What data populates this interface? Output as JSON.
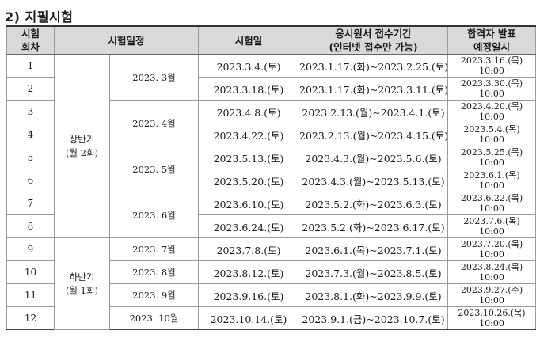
{
  "section_title": "2) 지필시험",
  "headers": {
    "round_line1": "시험",
    "round_line2": "회차",
    "schedule": "시험일정",
    "exam_date": "시험일",
    "application_line1": "응시원서 접수기간",
    "application_line2": "(인터넷 접수만 가능)",
    "announce_line1": "합격자 발표",
    "announce_line2": "예정일시"
  },
  "half_labels": {
    "first_line1": "상반기",
    "first_line2": "(월 2회)",
    "second_line1": "하반기",
    "second_line2": "(월 1회)"
  },
  "months": {
    "mar": "2023. 3월",
    "apr": "2023. 4월",
    "may": "2023. 5월",
    "jun": "2023. 6월",
    "jul": "2023. 7월",
    "aug": "2023. 8월",
    "sep": "2023. 9월",
    "oct": "2023. 10월"
  },
  "rows": [
    {
      "round": "1",
      "exam_date": "2023.3.4.(토)",
      "application": "2023.1.17.(화)~2023.2.25.(토)",
      "announce_date": "2023.3.16.(목)",
      "announce_time": "10:00"
    },
    {
      "round": "2",
      "exam_date": "2023.3.18.(토)",
      "application": "2023.1.17.(화)~2023.3.11.(토)",
      "announce_date": "2023.3.30.(목)",
      "announce_time": "10:00"
    },
    {
      "round": "3",
      "exam_date": "2023.4.8.(토)",
      "application": "2023.2.13.(월)~2023.4.1.(토)",
      "announce_date": "2023.4.20.(목)",
      "announce_time": "10:00"
    },
    {
      "round": "4",
      "exam_date": "2023.4.22.(토)",
      "application": "2023.2.13.(월)~2023.4.15.(토)",
      "announce_date": "2023.5.4.(목)",
      "announce_time": "10:00"
    },
    {
      "round": "5",
      "exam_date": "2023.5.13.(토)",
      "application": "2023.4.3.(월)~2023.5.6.(토)",
      "announce_date": "2023.5.25.(목)",
      "announce_time": "10:00"
    },
    {
      "round": "6",
      "exam_date": "2023.5.20.(토)",
      "application": "2023.4.3.(월)~2023.5.13.(토)",
      "announce_date": "2023.6.1.(목)",
      "announce_time": "10:00"
    },
    {
      "round": "7",
      "exam_date": "2023.6.10.(토)",
      "application": "2023.5.2.(화)~2023.6.3.(토)",
      "announce_date": "2023.6.22.(목)",
      "announce_time": "10:00"
    },
    {
      "round": "8",
      "exam_date": "2023.6.24.(토)",
      "application": "2023.5.2.(화)~2023.6.17.(토)",
      "announce_date": "2023.7.6.(목)",
      "announce_time": "10:00"
    },
    {
      "round": "9",
      "exam_date": "2023.7.8.(토)",
      "application": "2023.6.1.(목)~2023.7.1.(토)",
      "announce_date": "2023.7.20.(목)",
      "announce_time": "10:00"
    },
    {
      "round": "10",
      "exam_date": "2023.8.12.(토)",
      "application": "2023.7.3.(월)~2023.8.5.(토)",
      "announce_date": "2023.8.24.(목)",
      "announce_time": "10:00"
    },
    {
      "round": "11",
      "exam_date": "2023.9.16.(토)",
      "application": "2023.8.1.(화)~2023.9.9.(토)",
      "announce_date": "2023.9.27.(수)",
      "announce_time": "10:00"
    },
    {
      "round": "12",
      "exam_date": "2023.10.14.(토)",
      "application": "2023.9.1.(금)~2023.10.7.(토)",
      "announce_date": "2023.10.26.(목)",
      "announce_time": "10:00"
    }
  ]
}
